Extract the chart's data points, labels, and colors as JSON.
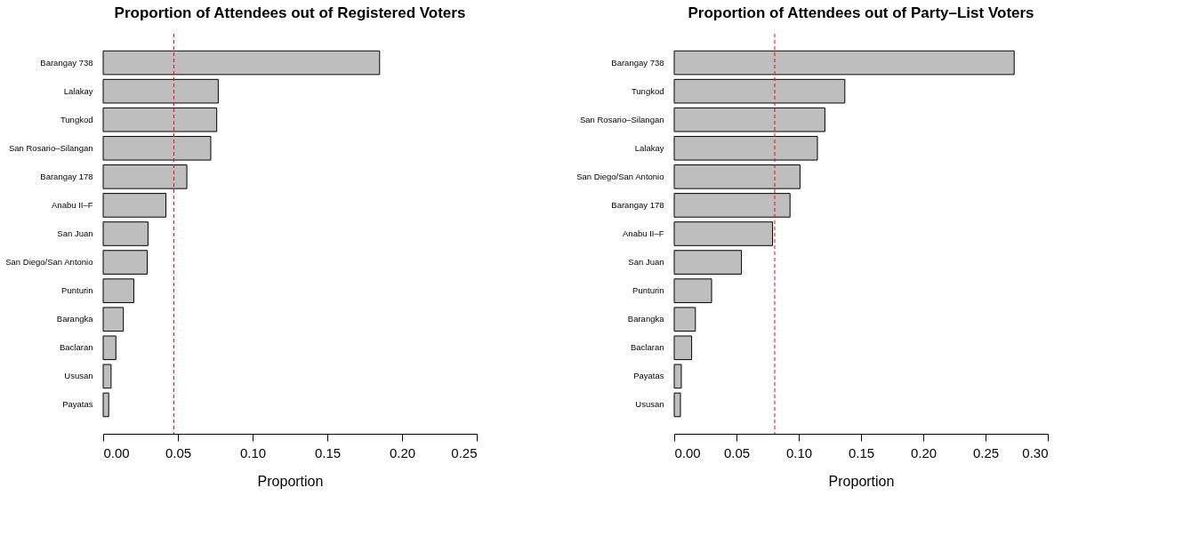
{
  "chart_data": [
    {
      "type": "bar",
      "orientation": "horizontal",
      "title": "Proportion of Attendees out of Registered Voters",
      "xlabel": "Proportion",
      "categories": [
        "Barangay 738",
        "Lalakay",
        "Tungkod",
        "San Rosario–Silangan",
        "Barangay 178",
        "Anabu II–F",
        "San Juan",
        "San Diego/San Antonio",
        "Punturin",
        "Barangka",
        "Baclaran",
        "Ususan",
        "Payatas"
      ],
      "values": [
        0.185,
        0.077,
        0.076,
        0.072,
        0.056,
        0.042,
        0.03,
        0.0295,
        0.0205,
        0.0135,
        0.0085,
        0.0053,
        0.0037
      ],
      "color": "#bebebe",
      "xlim": [
        0,
        0.25
      ],
      "xticks": [
        {
          "value": 0,
          "label": "0.00"
        },
        {
          "value": 0.05,
          "label": "0.05"
        },
        {
          "value": 0.1,
          "label": "0.10"
        },
        {
          "value": 0.15,
          "label": "0.15"
        },
        {
          "value": 0.2,
          "label": "0.20"
        },
        {
          "value": 0.25,
          "label": "0.25"
        }
      ],
      "ref_lines": [
        {
          "axis": "x",
          "value": 0.0473,
          "color": "#ff0000",
          "line_style": "dashed"
        }
      ],
      "grid": false
    },
    {
      "type": "bar",
      "orientation": "horizontal",
      "title": "Proportion of Attendees out of Party–List Voters",
      "xlabel": "Proportion",
      "categories": [
        "Barangay 738",
        "Tungkod",
        "San Rosario–Silangan",
        "Lalakay",
        "San Diego/San Antonio",
        "Barangay 178",
        "Anabu II–F",
        "San Juan",
        "Punturin",
        "Barangka",
        "Baclaran",
        "Payatas",
        "Ususan"
      ],
      "values": [
        0.273,
        0.137,
        0.121,
        0.115,
        0.101,
        0.093,
        0.079,
        0.054,
        0.03,
        0.017,
        0.014,
        0.0057,
        0.005
      ],
      "color": "#bebebe",
      "xlim": [
        0,
        0.3
      ],
      "xticks": [
        {
          "value": 0,
          "label": "0.00"
        },
        {
          "value": 0.05,
          "label": "0.05"
        },
        {
          "value": 0.1,
          "label": "0.10"
        },
        {
          "value": 0.15,
          "label": "0.15"
        },
        {
          "value": 0.2,
          "label": "0.20"
        },
        {
          "value": 0.25,
          "label": "0.25"
        },
        {
          "value": 0.3,
          "label": "0.30"
        }
      ],
      "ref_lines": [
        {
          "axis": "x",
          "value": 0.0807,
          "color": "#ff0000",
          "line_style": "dashed"
        }
      ],
      "grid": false
    }
  ]
}
